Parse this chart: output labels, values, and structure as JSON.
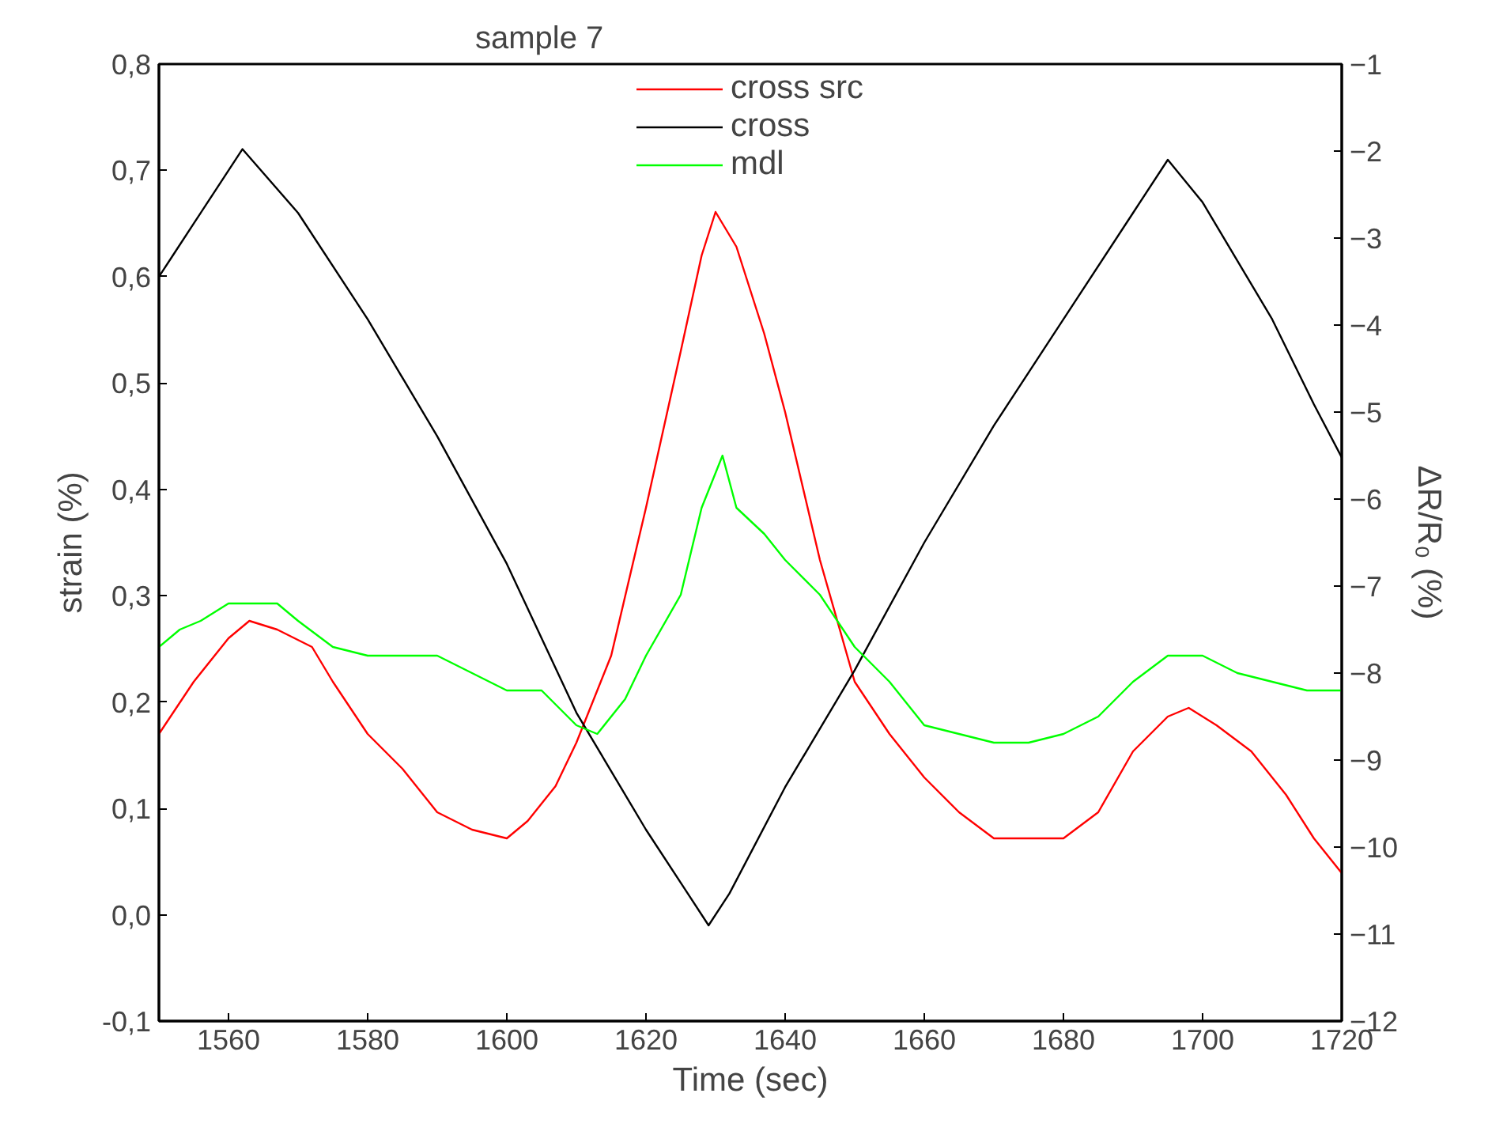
{
  "chart_data": {
    "type": "line",
    "title": "sample 7",
    "xlabel": "Time (sec)",
    "ylabel": "strain (%)",
    "y2label": "ΔR/R₀ (%)",
    "xlim": [
      1550,
      1720
    ],
    "xticks": [
      1560,
      1580,
      1600,
      1620,
      1640,
      1660,
      1680,
      1700,
      1720
    ],
    "ylim": [
      -0.1,
      0.8
    ],
    "yticks": [
      {
        "value": -0.1,
        "label": "-0,1"
      },
      {
        "value": 0.0,
        "label": "0,0"
      },
      {
        "value": 0.1,
        "label": "0,1"
      },
      {
        "value": 0.2,
        "label": "0,2"
      },
      {
        "value": 0.3,
        "label": "0,3"
      },
      {
        "value": 0.4,
        "label": "0,4"
      },
      {
        "value": 0.5,
        "label": "0,5"
      },
      {
        "value": 0.6,
        "label": "0,6"
      },
      {
        "value": 0.7,
        "label": "0,7"
      },
      {
        "value": 0.8,
        "label": "0,8"
      }
    ],
    "y2lim": [
      -12,
      -1
    ],
    "y2ticks": [
      -12,
      -11,
      -10,
      -9,
      -8,
      -7,
      -6,
      -5,
      -4,
      -3,
      -2,
      -1
    ],
    "legend": "top",
    "grid": false,
    "marker": "none",
    "line_style": "solid",
    "series": [
      {
        "name": "cross src",
        "color": "#ff0000",
        "axis": "y2",
        "x": [
          1550,
          1555,
          1560,
          1563,
          1567,
          1572,
          1575,
          1580,
          1585,
          1590,
          1595,
          1600,
          1603,
          1607,
          1610,
          1615,
          1620,
          1625,
          1628,
          1630,
          1633,
          1637,
          1640,
          1645,
          1650,
          1655,
          1660,
          1665,
          1670,
          1675,
          1680,
          1685,
          1690,
          1695,
          1698,
          1702,
          1707,
          1712,
          1716,
          1720
        ],
        "values": [
          -8.7,
          -8.1,
          -7.6,
          -7.4,
          -7.5,
          -7.7,
          -8.1,
          -8.7,
          -9.1,
          -9.6,
          -9.8,
          -9.9,
          -9.7,
          -9.3,
          -8.8,
          -7.8,
          -6.1,
          -4.3,
          -3.2,
          -2.7,
          -3.1,
          -4.1,
          -5.0,
          -6.7,
          -8.1,
          -8.7,
          -9.2,
          -9.6,
          -9.9,
          -9.9,
          -9.9,
          -9.6,
          -8.9,
          -8.5,
          -8.4,
          -8.6,
          -8.9,
          -9.4,
          -9.9,
          -10.3
        ]
      },
      {
        "name": "cross",
        "color": "#000000",
        "x": [
          1550,
          1552,
          1555,
          1558,
          1562,
          1570,
          1580,
          1590,
          1600,
          1610,
          1620,
          1626,
          1629,
          1632,
          1640,
          1650,
          1660,
          1670,
          1680,
          1690,
          1695,
          1700,
          1710,
          1716,
          1720
        ],
        "values": [
          0.6,
          0.62,
          0.65,
          0.68,
          0.72,
          0.66,
          0.56,
          0.45,
          0.33,
          0.19,
          0.08,
          0.02,
          -0.01,
          0.02,
          0.12,
          0.23,
          0.35,
          0.46,
          0.56,
          0.66,
          0.71,
          0.67,
          0.56,
          0.48,
          0.43
        ]
      },
      {
        "name": "mdl",
        "color": "#00ff00",
        "axis": "y2",
        "x": [
          1550,
          1553,
          1556,
          1560,
          1563,
          1567,
          1570,
          1575,
          1580,
          1590,
          1600,
          1605,
          1610,
          1613,
          1617,
          1620,
          1625,
          1628,
          1631,
          1633,
          1637,
          1640,
          1645,
          1650,
          1655,
          1660,
          1665,
          1670,
          1675,
          1680,
          1685,
          1690,
          1695,
          1700,
          1705,
          1710,
          1715,
          1720
        ],
        "values": [
          -7.7,
          -7.5,
          -7.4,
          -7.2,
          -7.2,
          -7.2,
          -7.4,
          -7.7,
          -7.8,
          -7.8,
          -8.2,
          -8.2,
          -8.6,
          -8.7,
          -8.3,
          -7.8,
          -7.1,
          -6.1,
          -5.5,
          -6.1,
          -6.4,
          -6.7,
          -7.1,
          -7.7,
          -8.1,
          -8.6,
          -8.7,
          -8.8,
          -8.8,
          -8.7,
          -8.5,
          -8.1,
          -7.8,
          -7.8,
          -8.0,
          -8.1,
          -8.2,
          -8.2
        ]
      }
    ]
  }
}
